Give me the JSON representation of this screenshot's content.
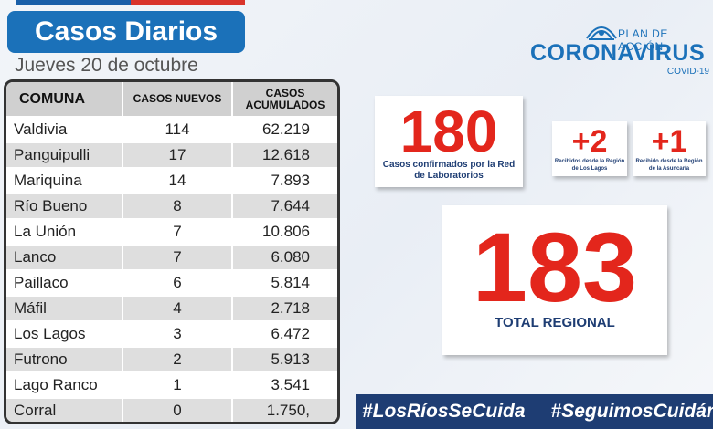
{
  "header": {
    "title": "Casos Diarios",
    "date": "Jueves 20 de octubre"
  },
  "table": {
    "columns": [
      "COMUNA",
      "CASOS NUEVOS",
      "CASOS ACUMULADOS"
    ],
    "rows": [
      {
        "comuna": "Valdivia",
        "nuevos": "114",
        "acumulados": "62.219"
      },
      {
        "comuna": "Panguipulli",
        "nuevos": "17",
        "acumulados": "12.618"
      },
      {
        "comuna": "Mariquina",
        "nuevos": "14",
        "acumulados": "7.893"
      },
      {
        "comuna": "Río Bueno",
        "nuevos": "8",
        "acumulados": "7.644"
      },
      {
        "comuna": "La Unión",
        "nuevos": "7",
        "acumulados": "10.806"
      },
      {
        "comuna": "Lanco",
        "nuevos": "7",
        "acumulados": "6.080"
      },
      {
        "comuna": "Paillaco",
        "nuevos": "6",
        "acumulados": "5.814"
      },
      {
        "comuna": "Máfil",
        "nuevos": "4",
        "acumulados": "2.718"
      },
      {
        "comuna": "Los Lagos",
        "nuevos": "3",
        "acumulados": "6.472"
      },
      {
        "comuna": "Futrono",
        "nuevos": "2",
        "acumulados": "5.913"
      },
      {
        "comuna": "Lago Ranco",
        "nuevos": "1",
        "acumulados": "3.541"
      },
      {
        "comuna": "Corral",
        "nuevos": "0",
        "acumulados": "1.750,"
      }
    ]
  },
  "logo": {
    "plan": "PLAN DE ACCIÓN",
    "main": "CORONAVIRUS",
    "sub": "COVID-19"
  },
  "cards": {
    "lab": {
      "value": "180",
      "label": "Casos confirmados por la Red de Laboratorios"
    },
    "los_lagos": {
      "value": "+2",
      "label": "Recibidos desde la Región de Los Lagos"
    },
    "asuncion": {
      "value": "+1",
      "label": "Recibido desde la Región de la Asuncaría"
    },
    "total": {
      "value": "183",
      "label": "TOTAL REGIONAL"
    }
  },
  "hashtags": [
    "#LosRíosSeCuida",
    "#SeguimosCuidándonos"
  ],
  "colors": {
    "brand_blue": "#1b71b9",
    "dark_blue": "#1e3d73",
    "accent_red": "#e3261c"
  }
}
